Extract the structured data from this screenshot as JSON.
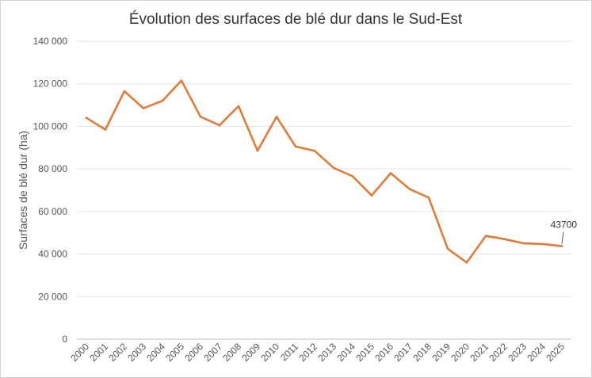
{
  "chart_data": {
    "type": "line",
    "title": "Évolution des surfaces de blé dur dans le Sud-Est",
    "xlabel": "",
    "ylabel": "Surfaces de blé dur (ha)",
    "ylim": [
      0,
      140000
    ],
    "yticks": [
      0,
      20000,
      40000,
      60000,
      80000,
      100000,
      120000,
      140000
    ],
    "ytick_labels": [
      "0",
      "20 000",
      "40 000",
      "60 000",
      "80 000",
      "100 000",
      "120 000",
      "140 000"
    ],
    "grid": true,
    "legend": "none",
    "color": "#e07b39",
    "categories": [
      "2000",
      "2001",
      "2002",
      "2003",
      "2004",
      "2005",
      "2006",
      "2007",
      "2008",
      "2009",
      "2010",
      "2011",
      "2012",
      "2013",
      "2014",
      "2015",
      "2016",
      "2017",
      "2018",
      "2019",
      "2020",
      "2021",
      "2022",
      "2023",
      "2024",
      "2025"
    ],
    "series": [
      {
        "values": [
          104000,
          98500,
          116500,
          108500,
          112000,
          121500,
          104500,
          100500,
          109500,
          88500,
          104500,
          90500,
          88500,
          80500,
          76500,
          67500,
          78000,
          70500,
          66500,
          42500,
          36000,
          48500,
          47000,
          45000,
          44700,
          43700
        ]
      }
    ],
    "annotations": [
      {
        "category": "2025",
        "text": "43700"
      }
    ]
  }
}
